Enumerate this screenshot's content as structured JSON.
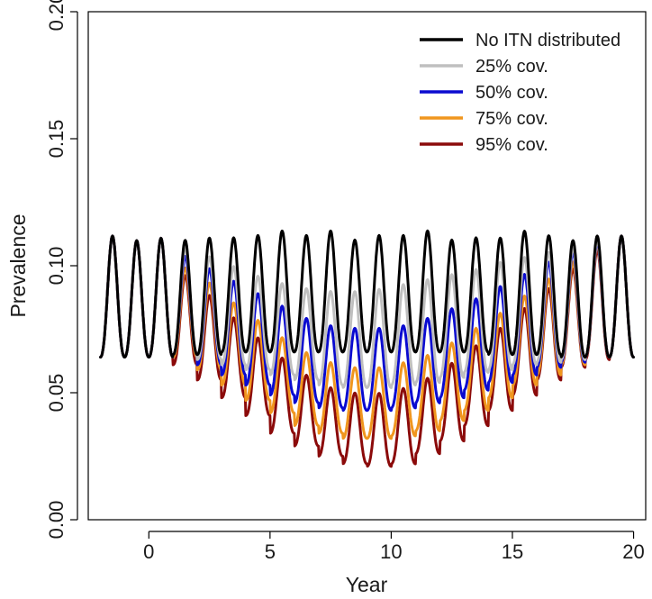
{
  "chart_data": {
    "type": "line",
    "title": "",
    "xlabel": "Year",
    "ylabel": "Prevalence",
    "xlim": [
      -2.5,
      20.5
    ],
    "ylim": [
      0.0,
      0.2
    ],
    "xticks": [
      0,
      5,
      10,
      15,
      20
    ],
    "xtick_labels": [
      "0",
      "5",
      "10",
      "15",
      "20"
    ],
    "yticks": [
      0.0,
      0.05,
      0.1,
      0.15,
      0.2
    ],
    "ytick_labels": [
      "0.00",
      "0.05",
      "0.10",
      "0.15",
      "0.20"
    ],
    "grid": false,
    "legend_position": "top-right",
    "x_start": -2,
    "x_end": 20,
    "intervention_start": 1,
    "seasonal_period_years": 1,
    "series": [
      {
        "name": "No ITN distributed",
        "color": "#000000",
        "yearly_min": [
          0.064,
          0.064,
          0.064,
          0.065,
          0.065,
          0.066,
          0.066,
          0.066,
          0.066,
          0.066,
          0.066,
          0.066,
          0.066,
          0.066,
          0.066,
          0.066,
          0.065,
          0.065,
          0.065,
          0.064,
          0.064,
          0.064
        ],
        "yearly_peak": [
          0.117,
          0.115,
          0.116,
          0.115,
          0.116,
          0.116,
          0.117,
          0.119,
          0.117,
          0.119,
          0.115,
          0.117,
          0.117,
          0.119,
          0.115,
          0.116,
          0.116,
          0.119,
          0.117,
          0.115,
          0.117,
          0.117
        ]
      },
      {
        "name": "25% cov.",
        "color": "#bfbfbf",
        "yearly_min": [
          0.064,
          0.064,
          0.064,
          0.065,
          0.063,
          0.061,
          0.059,
          0.057,
          0.055,
          0.053,
          0.052,
          0.052,
          0.053,
          0.054,
          0.056,
          0.058,
          0.059,
          0.061,
          0.062,
          0.063,
          0.064,
          0.064
        ],
        "yearly_peak": [
          0.117,
          0.115,
          0.116,
          0.112,
          0.108,
          0.104,
          0.1,
          0.097,
          0.095,
          0.094,
          0.094,
          0.095,
          0.097,
          0.099,
          0.101,
          0.103,
          0.106,
          0.108,
          0.11,
          0.112,
          0.115,
          0.117
        ]
      },
      {
        "name": "50% cov.",
        "color": "#0a0ad0",
        "yearly_min": [
          0.064,
          0.064,
          0.064,
          0.065,
          0.061,
          0.057,
          0.053,
          0.049,
          0.046,
          0.044,
          0.043,
          0.043,
          0.044,
          0.046,
          0.048,
          0.051,
          0.054,
          0.057,
          0.06,
          0.062,
          0.064,
          0.064
        ],
        "yearly_peak": [
          0.117,
          0.115,
          0.116,
          0.108,
          0.103,
          0.098,
          0.093,
          0.088,
          0.083,
          0.08,
          0.079,
          0.079,
          0.08,
          0.083,
          0.087,
          0.091,
          0.096,
          0.101,
          0.106,
          0.11,
          0.114,
          0.117
        ]
      },
      {
        "name": "75% cov.",
        "color": "#f0961e",
        "yearly_min": [
          0.064,
          0.064,
          0.064,
          0.064,
          0.059,
          0.053,
          0.047,
          0.042,
          0.037,
          0.034,
          0.032,
          0.032,
          0.033,
          0.035,
          0.039,
          0.043,
          0.048,
          0.053,
          0.057,
          0.061,
          0.064,
          0.064
        ],
        "yearly_peak": [
          0.117,
          0.115,
          0.116,
          0.103,
          0.097,
          0.089,
          0.082,
          0.075,
          0.069,
          0.065,
          0.063,
          0.063,
          0.065,
          0.068,
          0.073,
          0.079,
          0.085,
          0.092,
          0.099,
          0.106,
          0.113,
          0.117
        ]
      },
      {
        "name": "95% cov.",
        "color": "#8b0a0a",
        "yearly_min": [
          0.064,
          0.064,
          0.064,
          0.061,
          0.055,
          0.048,
          0.041,
          0.034,
          0.029,
          0.025,
          0.022,
          0.021,
          0.022,
          0.026,
          0.031,
          0.037,
          0.043,
          0.049,
          0.055,
          0.06,
          0.063,
          0.064
        ],
        "yearly_peak": [
          0.117,
          0.115,
          0.116,
          0.1,
          0.092,
          0.083,
          0.075,
          0.067,
          0.06,
          0.055,
          0.053,
          0.053,
          0.055,
          0.059,
          0.065,
          0.072,
          0.079,
          0.087,
          0.095,
          0.103,
          0.111,
          0.117
        ]
      }
    ]
  }
}
